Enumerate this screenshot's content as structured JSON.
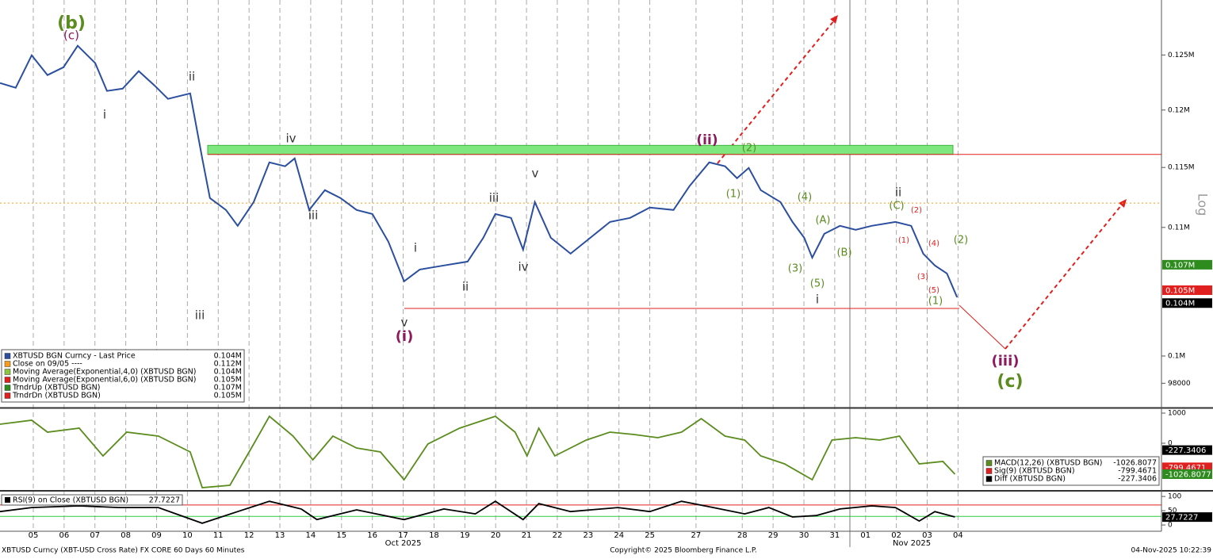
{
  "chart_data": [
    {
      "type": "line",
      "log_scale": true,
      "x": [
        -1.08,
        -0.57,
        -0.05,
        0.46,
        0.98,
        1.44,
        2.01,
        2.39,
        2.9,
        3.42,
        3.93,
        4.37,
        5.09,
        5.48,
        5.73,
        6.25,
        6.63,
        7.15,
        7.66,
        8.17,
        8.48,
        8.95,
        9.46,
        9.97,
        10.49,
        11.0,
        11.52,
        12.03,
        12.54,
        13.32,
        14.09,
        14.6,
        14.99,
        15.5,
        15.89,
        16.27,
        16.79,
        17.43,
        18.07,
        18.71,
        19.36,
        20.0,
        20.77,
        21.29,
        21.93,
        22.44,
        22.83,
        23.21,
        23.6,
        24.24,
        24.63,
        25.01,
        25.27,
        25.66,
        26.17,
        26.68,
        27.2,
        27.97,
        28.48,
        28.87,
        29.25,
        29.64,
        29.97
      ],
      "series": [
        {
          "name": "XBTUSD BGN Curncy - Last Price",
          "color": "#2b4f9e",
          "last": "0.104M",
          "values": [
            122430,
            122000,
            124970,
            123150,
            123870,
            125860,
            124250,
            121710,
            121920,
            123510,
            122210,
            121000,
            121490,
            115770,
            112420,
            111430,
            110130,
            112090,
            115430,
            115100,
            115770,
            111430,
            113080,
            112420,
            111430,
            111100,
            108840,
            105690,
            106620,
            106940,
            107250,
            109160,
            111100,
            110780,
            108200,
            112090,
            109160,
            107880,
            109160,
            110450,
            110780,
            111630,
            111430,
            113420,
            115430,
            115100,
            114090,
            114960,
            113080,
            112090,
            110450,
            109160,
            107560,
            109480,
            110130,
            109800,
            110130,
            110450,
            110130,
            107880,
            106940,
            106310,
            104450
          ]
        }
      ],
      "legend_items": [
        {
          "name": "Close on 09/05 ----",
          "color": "#f59c1a",
          "last": "0.112M"
        },
        {
          "name": "Moving Average(Exponential,4,0) (XBTUSD BGN)",
          "color": "#8cc63f",
          "last": "0.104M"
        },
        {
          "name": "Moving Average(Exponential,6,0) (XBTUSD BGN)",
          "color": "#e0201e",
          "last": "0.105M"
        },
        {
          "name": "TrndrUp (XBTUSD BGN)",
          "color": "#2e8b1e",
          "last": "0.107M"
        },
        {
          "name": "TrndrDn (XBTUSD BGN)",
          "color": "#e0201e",
          "last": "0.105M"
        }
      ],
      "xlim": [
        -1.08,
        36.6
      ],
      "ylim": [
        96250,
        130200
      ],
      "yticks": [
        98000,
        {
          "value": 100000,
          "label": "0.1M"
        },
        {
          "value": 110000,
          "label": "0.11M"
        },
        {
          "value": 115000,
          "label": "0.115M"
        },
        {
          "value": 120000,
          "label": "0.12M"
        },
        {
          "value": 125000,
          "label": "0.125M"
        }
      ],
      "reference_lines": [
        {
          "value": 112000,
          "color": "#f59c1a",
          "dash": "2,3"
        },
        {
          "value": 116120,
          "color": "#e0201e"
        },
        {
          "value": 103590,
          "color": "#e0201e"
        }
      ],
      "zone": {
        "low": 116120,
        "high": 116900,
        "color": "#7ee87e"
      },
      "badges": [
        {
          "value": 107000,
          "label": "0.107M",
          "color": "#2e8b1e"
        },
        {
          "value": 105000,
          "label": "0.105M",
          "color": "#e0201e"
        },
        {
          "value": 104000,
          "label": "0.104M",
          "color": "#000000"
        }
      ],
      "axis_label": "Log",
      "annotations": [
        {
          "text": "(b)",
          "color": "#5b8c1e"
        },
        {
          "text": "(c)",
          "color": "#8b1a5e"
        },
        {
          "text": "ii",
          "color": "#333333"
        },
        {
          "text": "i",
          "color": "#333333"
        },
        {
          "text": "iv",
          "color": "#333333"
        },
        {
          "text": "iii",
          "color": "#333333"
        },
        {
          "text": "iii",
          "color": "#333333"
        },
        {
          "text": "v",
          "color": "#333333"
        },
        {
          "text": "(i)",
          "color": "#8b1a5e"
        },
        {
          "text": "i",
          "color": "#333333"
        },
        {
          "text": "ii",
          "color": "#333333"
        },
        {
          "text": "iii",
          "color": "#333333"
        },
        {
          "text": "iv",
          "color": "#333333"
        },
        {
          "text": "v",
          "color": "#333333"
        },
        {
          "text": "(ii)",
          "color": "#8b1a5e"
        },
        {
          "text": "(2)",
          "color": "#5b8c1e"
        },
        {
          "text": "(1)",
          "color": "#5b8c1e"
        },
        {
          "text": "(4)",
          "color": "#5b8c1e"
        },
        {
          "text": "(A)",
          "color": "#5b8c1e"
        },
        {
          "text": "(B)",
          "color": "#5b8c1e"
        },
        {
          "text": "(3)",
          "color": "#5b8c1e"
        },
        {
          "text": "(5)",
          "color": "#5b8c1e"
        },
        {
          "text": "i",
          "color": "#333333"
        },
        {
          "text": "ii",
          "color": "#333333"
        },
        {
          "text": "(C)",
          "color": "#5b8c1e"
        },
        {
          "text": "(2)",
          "color": "#e0201e"
        },
        {
          "text": "(1)",
          "color": "#e0201e"
        },
        {
          "text": "(4)",
          "color": "#e0201e"
        },
        {
          "text": "(2)",
          "color": "#5b8c1e"
        },
        {
          "text": "(3)",
          "color": "#e0201e"
        },
        {
          "text": "(5)",
          "color": "#e0201e"
        },
        {
          "text": "(1)",
          "color": "#5b8c1e"
        },
        {
          "text": "(iii)",
          "color": "#8b1a5e"
        },
        {
          "text": "(c)",
          "color": "#5b8c1e"
        }
      ]
    },
    {
      "type": "line",
      "x": [
        -1.08,
        -0.05,
        0.46,
        1.49,
        2.26,
        3.03,
        4.06,
        5.09,
        5.48,
        6.38,
        7.15,
        7.66,
        8.43,
        9.07,
        9.72,
        10.49,
        11.26,
        12.03,
        12.8,
        13.83,
        14.99,
        15.63,
        16.02,
        16.4,
        16.92,
        17.94,
        18.71,
        19.49,
        20.26,
        21.03,
        21.67,
        22.44,
        23.08,
        23.6,
        24.37,
        25.27,
        25.91,
        26.68,
        27.46,
        28.1,
        28.74,
        29.51,
        29.9
      ],
      "series": [
        {
          "name": "MACD(12,26) (XBTUSD BGN)",
          "color": "#5b8c1e",
          "last": -1026.8077,
          "values": [
            632,
            763,
            368,
            500,
            -421,
            368,
            237,
            -289,
            -1474,
            -1395,
            -26,
            895,
            237,
            -553,
            237,
            -158,
            -289,
            -1211,
            -26,
            500,
            895,
            368,
            -421,
            500,
            -421,
            105,
            368,
            289,
            184,
            368,
            816,
            237,
            105,
            -421,
            -684,
            -1211,
            105,
            184,
            105,
            237,
            -684,
            -605,
            -1026
          ]
        }
      ],
      "legend_items": [
        {
          "name": "Sig(9) (XBTUSD BGN)",
          "color": "#e0201e",
          "last": -799.4671
        },
        {
          "name": "Diff (XBTUSD BGN)",
          "color": "#000000",
          "last": -227.3406
        }
      ],
      "xlim": [
        -1.08,
        36.6
      ],
      "ylim": [
        -1553,
        1132
      ],
      "yticks": [
        0,
        1000
      ],
      "badges": [
        {
          "value": -227.3406,
          "color": "#000000"
        },
        {
          "value": -799.4671,
          "color": "#e0201e"
        },
        {
          "value": -1026.8077,
          "color": "#2e8b1e"
        }
      ]
    },
    {
      "type": "line",
      "x": [
        -1.08,
        -0.05,
        1.49,
        2.78,
        4.06,
        5.48,
        6.63,
        7.66,
        8.69,
        9.2,
        10.49,
        12.03,
        13.32,
        14.34,
        14.99,
        15.89,
        16.4,
        17.43,
        18.97,
        20.0,
        21.03,
        22.06,
        23.08,
        23.86,
        24.63,
        25.4,
        26.17,
        27.2,
        27.97,
        28.74,
        29.25,
        29.9
      ],
      "series": [
        {
          "name": "RSI(9) on Close (XBTUSD BGN)",
          "color": "#000000",
          "last": 27.7227,
          "values": [
            47,
            61,
            67,
            61,
            61,
            6,
            47,
            83,
            56,
            19,
            53,
            19,
            56,
            39,
            83,
            19,
            75,
            47,
            61,
            47,
            83,
            61,
            39,
            61,
            28,
            33,
            56,
            67,
            61,
            14,
            47,
            28
          ]
        }
      ],
      "xlim": [
        -1.08,
        36.6
      ],
      "ylim": [
        -22,
        117
      ],
      "yticks": [
        0,
        50,
        100
      ],
      "reference_lines": [
        {
          "value": 70,
          "color": "#e0201e"
        },
        {
          "value": 30,
          "color": "#2ecc40"
        }
      ],
      "badges": [
        {
          "value": 27.7227,
          "color": "#000000"
        }
      ],
      "xticks": [
        {
          "value": 0,
          "label": "05"
        },
        {
          "value": 1,
          "label": "06"
        },
        {
          "value": 2,
          "label": "07"
        },
        {
          "value": 3,
          "label": "08"
        },
        {
          "value": 4,
          "label": "09"
        },
        {
          "value": 5,
          "label": "10"
        },
        {
          "value": 6,
          "label": "11"
        },
        {
          "value": 7,
          "label": "12"
        },
        {
          "value": 8,
          "label": "13"
        },
        {
          "value": 9,
          "label": "14"
        },
        {
          "value": 10,
          "label": "15"
        },
        {
          "value": 11,
          "label": "16"
        },
        {
          "value": 12,
          "label": "17"
        },
        {
          "value": 13,
          "label": "18"
        },
        {
          "value": 14,
          "label": "19"
        },
        {
          "value": 15,
          "label": "20"
        },
        {
          "value": 16,
          "label": "21"
        },
        {
          "value": 17,
          "label": "22"
        },
        {
          "value": 18,
          "label": "23"
        },
        {
          "value": 19,
          "label": "24"
        },
        {
          "value": 20,
          "label": "25"
        },
        {
          "value": 21.5,
          "label": "27"
        },
        {
          "value": 23,
          "label": "28"
        },
        {
          "value": 24,
          "label": "29"
        },
        {
          "value": 25,
          "label": "30"
        },
        {
          "value": 26,
          "label": "31"
        },
        {
          "value": 27,
          "label": "01"
        },
        {
          "value": 28,
          "label": "02"
        },
        {
          "value": 29,
          "label": "03"
        },
        {
          "value": 30,
          "label": "04"
        }
      ],
      "period_labels": [
        "Oct 2025",
        "Nov 2025"
      ]
    }
  ],
  "footer": {
    "left": "XBTUSD Curncy (XBT-USD Cross Rate) FX CORE 60 Days 60 Minutes",
    "center": "Copyright© 2025 Bloomberg Finance L.P.",
    "right": "04-Nov-2025 10:22:39"
  }
}
